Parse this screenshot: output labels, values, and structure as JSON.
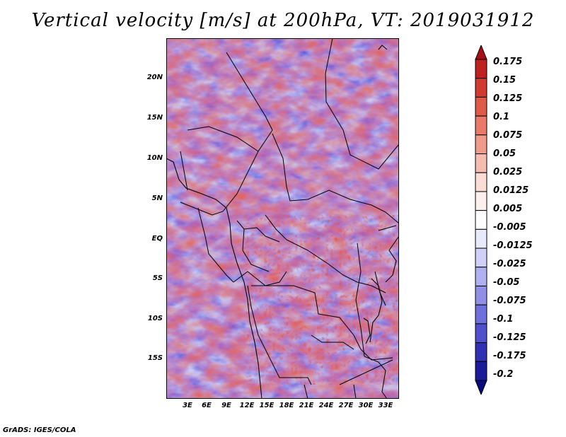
{
  "title": "Vertical velocity [m/s] at 200hPa, VT: 2019031912",
  "credit": "GrADS: IGES/COLA",
  "latitude_labels": [
    "20N",
    "15N",
    "10N",
    "5N",
    "EQ",
    "5S",
    "10S",
    "15S"
  ],
  "longitude_labels": [
    "3E",
    "6E",
    "9E",
    "12E",
    "15E",
    "18E",
    "21E",
    "24E",
    "27E",
    "30E",
    "33E"
  ],
  "colorbar": {
    "labels": [
      "0.175",
      "0.15",
      "0.125",
      "0.1",
      "0.075",
      "0.05",
      "0.025",
      "0.0125",
      "0.005",
      "-0.005",
      "-0.0125",
      "-0.025",
      "-0.05",
      "-0.075",
      "-0.1",
      "-0.125",
      "-0.175",
      "-0.2"
    ],
    "colors": [
      "#a50f15",
      "#c0201e",
      "#d43a2f",
      "#e05a48",
      "#ea7a68",
      "#f29a8a",
      "#f7bcb0",
      "#fbdcd4",
      "#fdf0ec",
      "#ffffff",
      "#e9e9fc",
      "#cfcff7",
      "#b0b0f0",
      "#9090e8",
      "#7070dd",
      "#5050cc",
      "#3030b4",
      "#1c1c9a",
      "#0a0a80"
    ]
  }
}
